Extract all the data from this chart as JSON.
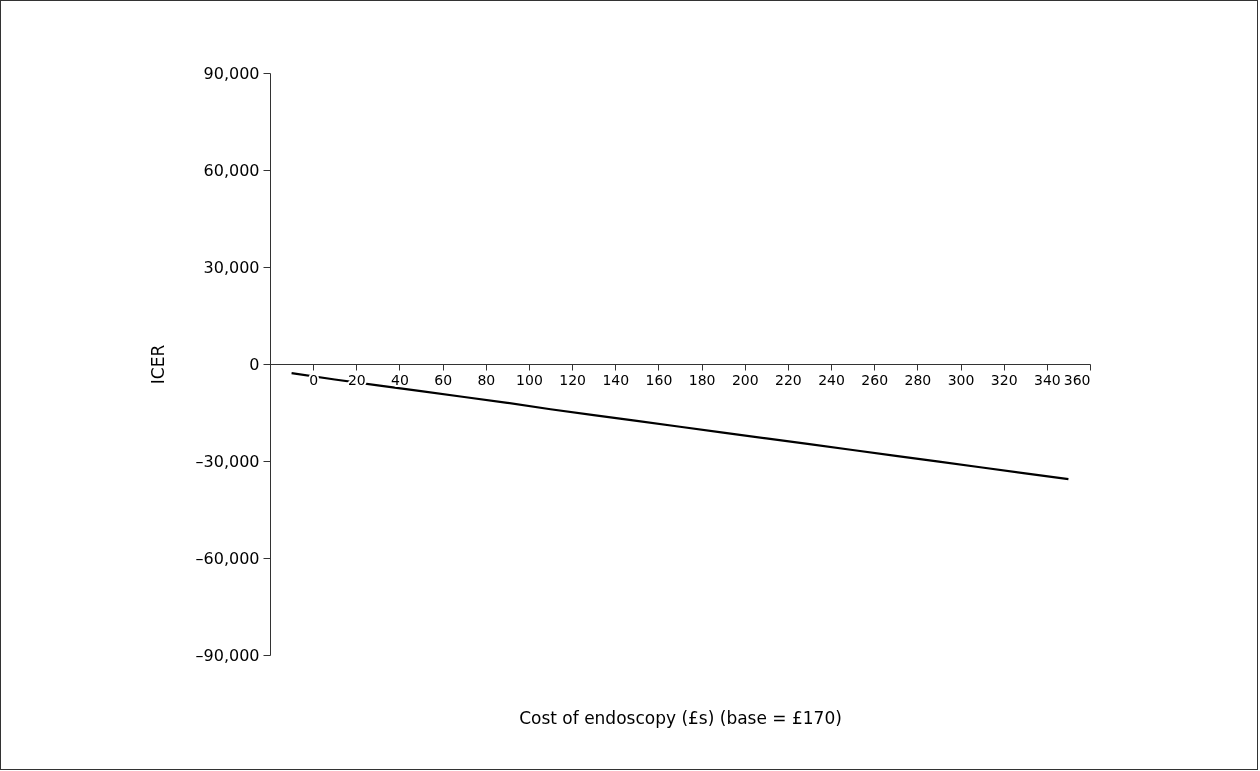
{
  "chart_data": {
    "type": "line",
    "xlabel": "Cost of endoscopy (£s) (base = £170)",
    "ylabel": "ICER",
    "x": [
      -10,
      10,
      30,
      50,
      70,
      90,
      110,
      130,
      150,
      170,
      190,
      210,
      230,
      250,
      270,
      290,
      310,
      330,
      350
    ],
    "series": [
      {
        "color": "#000000",
        "values": [
          -2800,
          -4800,
          -6600,
          -8400,
          -10200,
          -12000,
          -14000,
          -15800,
          -17600,
          -19400,
          -21200,
          -23000,
          -24800,
          -26600,
          -28400,
          -30200,
          -32000,
          -33800,
          -35600
        ]
      }
    ],
    "xlim": [
      -20,
      360
    ],
    "xticks": [
      0,
      20,
      40,
      60,
      80,
      100,
      120,
      140,
      160,
      180,
      200,
      220,
      240,
      260,
      280,
      300,
      320,
      340,
      360
    ],
    "ylim": [
      -90000,
      90000
    ],
    "yticks": [
      {
        "value": -90000,
        "label": "–90,000"
      },
      {
        "value": -60000,
        "label": "–60,000"
      },
      {
        "value": -30000,
        "label": "–30,000"
      },
      0,
      {
        "value": 30000,
        "label": "30,000"
      },
      {
        "value": 60000,
        "label": "60,000"
      },
      {
        "value": 90000,
        "label": "90,000"
      }
    ],
    "grid": false,
    "legend": false,
    "marker": "none",
    "line_style": "solid"
  }
}
